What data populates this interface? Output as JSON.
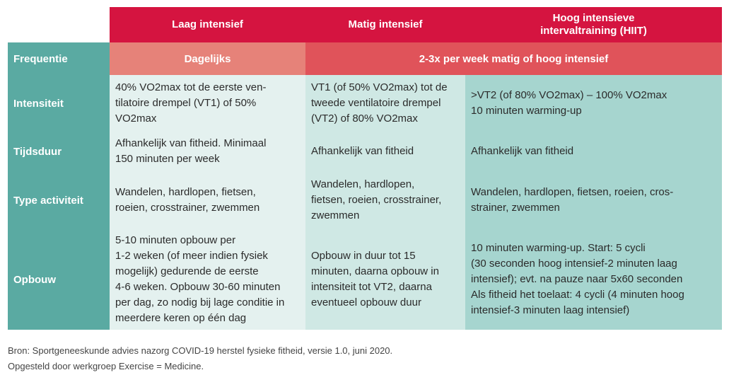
{
  "header": {
    "col1": "Laag intensief",
    "col2": "Matig intensief",
    "col3": "Hoog intensieve\nintervaltraining (HIIT)"
  },
  "frequentie": {
    "label": "Frequentie",
    "col1": "Dagelijks",
    "col23": "2-3x per week matig of hoog intensief"
  },
  "rows": [
    {
      "label": "Intensiteit",
      "col1": "40% VO2max tot de eerste ven-\ntilatoire drempel (VT1) of 50%\nVO2max",
      "col2": "VT1 (of 50% VO2max) tot de\ntweede ventilatoire drempel\n(VT2) of 80% VO2max",
      "col3": ">VT2 (of 80% VO2max) – 100% VO2max\n10 minuten warming-up"
    },
    {
      "label": "Tijdsduur",
      "col1": "Afhankelijk van fitheid. Minimaal\n150 minuten per week",
      "col2": "Afhankelijk van fitheid",
      "col3": "Afhankelijk van fitheid"
    },
    {
      "label": "Type activiteit",
      "col1": "Wandelen, hardlopen, fietsen,\nroeien, crosstrainer, zwemmen",
      "col2": "Wandelen, hardlopen,\nfietsen, roeien, crosstrainer,\nzwemmen",
      "col3": "Wandelen, hardlopen, fietsen, roeien, cros-\nstrainer, zwemmen"
    },
    {
      "label": "Opbouw",
      "col1": "5-10 minuten opbouw per\n1-2 weken (of meer indien fysiek\nmogelijk) gedurende de eerste\n4-6 weken. Opbouw 30-60 minuten\nper dag, zo nodig bij lage conditie in\nmeerdere keren op één dag",
      "col2": "Opbouw in duur tot 15\nminuten, daarna opbouw in\nintensiteit tot VT2, daarna\neventueel opbouw duur",
      "col3": "10 minuten warming-up. Start: 5 cycli\n(30 seconden hoog intensief-2 minuten laag\nintensief); evt. na pauze naar 5x60 seconden\nAls fitheid het toelaat: 4 cycli (4 minuten hoog\nintensief-3 minuten laag intensief)"
    }
  ],
  "footnote": {
    "line1": "Bron: Sportgeneeskunde advies nazorg COVID-19 herstel fysieke fitheid, versie 1.0, juni 2020.",
    "line2": "Opgesteld door werkgroep Exercise = Medicine."
  },
  "colors": {
    "header": "#d51440",
    "row_label": "#5aaaa2",
    "freq_daily": "#e68279",
    "freq_weekly": "#e0535a",
    "col1_bg": "#e4f1ef",
    "col2_bg": "#cfe8e4",
    "col3_bg": "#a6d5cf"
  }
}
